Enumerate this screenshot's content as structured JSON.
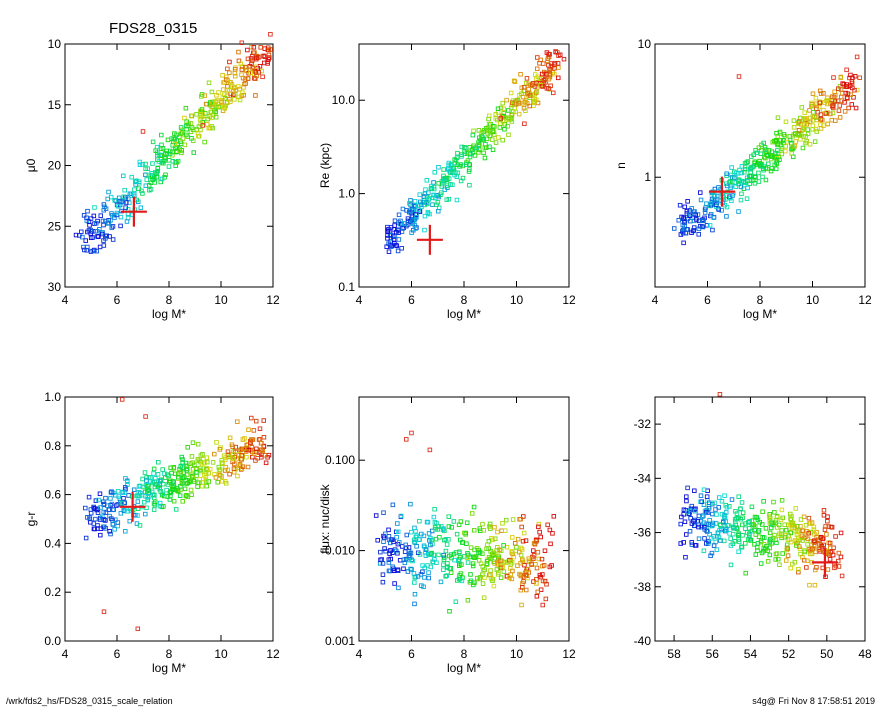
{
  "figure": {
    "title": "FDS28_0315",
    "footer_left": "/wrk/fds2_hs/FDS28_0315_scale_relation",
    "footer_right": "s4g@  Fri Nov  8 17:58:51 2019"
  },
  "colors": {
    "marker_red": "#e21a1a",
    "axis": "#000000"
  },
  "chart_data": [
    {
      "type": "scatter",
      "id": "mu0",
      "xlabel": "log M*",
      "ylabel": "μ0",
      "xlim": [
        4,
        12
      ],
      "ylim": [
        30,
        10
      ],
      "yscale": "linear",
      "xticks": [
        4,
        6,
        8,
        10,
        12
      ],
      "xticklabels": [
        "4",
        "6",
        "8",
        "10",
        "12"
      ],
      "yticks": [
        10,
        15,
        20,
        25,
        30
      ],
      "yticklabels": [
        "10",
        "15",
        "20",
        "25",
        "30"
      ],
      "x_trend": [
        4.8,
        11.8
      ],
      "y_trend": [
        26.2,
        10.5
      ],
      "scatter": 1.6,
      "target": [
        6.65,
        23.8
      ],
      "extra_points": [
        [
          11.9,
          9.2
        ],
        [
          10.8,
          9.9
        ],
        [
          11.2,
          11.0
        ],
        [
          11.6,
          12.7
        ],
        [
          9.3,
          16.7
        ],
        [
          7.0,
          17.2
        ]
      ]
    },
    {
      "type": "scatter",
      "id": "re",
      "xlabel": "log M*",
      "ylabel": "Re (kpc)",
      "xlim": [
        4,
        12
      ],
      "ylim": [
        0.1,
        40
      ],
      "yscale": "log",
      "xticks": [
        4,
        6,
        8,
        10,
        12
      ],
      "xticklabels": [
        "4",
        "6",
        "8",
        "10",
        "12"
      ],
      "yticks": [
        0.1,
        1.0,
        10.0
      ],
      "yticklabels": [
        "0.1",
        "1.0",
        "10.0"
      ],
      "x_trend": [
        5.1,
        11.7
      ],
      "y_trend": [
        0.3,
        30
      ],
      "scatter": 0.17,
      "target": [
        6.7,
        0.32
      ],
      "extra_points": [
        [
          11.6,
          30
        ],
        [
          11.0,
          14
        ],
        [
          11.4,
          12
        ],
        [
          10.3,
          5.6
        ],
        [
          9.4,
          6.4
        ]
      ]
    },
    {
      "type": "scatter",
      "id": "n",
      "xlabel": "log M*",
      "ylabel": "n",
      "xlim": [
        4,
        12
      ],
      "ylim": [
        0.15,
        10
      ],
      "yscale": "log",
      "xticks": [
        4,
        6,
        8,
        10,
        12
      ],
      "xticklabels": [
        "4",
        "6",
        "8",
        "10",
        "12"
      ],
      "yticks": [
        1,
        10
      ],
      "yticklabels": [
        "1",
        "10"
      ],
      "x_trend": [
        5.1,
        11.7
      ],
      "y_trend": [
        0.42,
        5.0
      ],
      "scatter": 0.14,
      "target": [
        6.55,
        0.78
      ],
      "extra_points": [
        [
          11.7,
          8.0
        ],
        [
          11.3,
          6.4
        ],
        [
          10.8,
          5.6
        ],
        [
          11.6,
          4.5
        ],
        [
          7.2,
          5.7
        ]
      ]
    },
    {
      "type": "scatter",
      "id": "gr",
      "xlabel": "log M*",
      "ylabel": "g-r",
      "xlim": [
        4,
        12
      ],
      "ylim": [
        0.0,
        1.0
      ],
      "yscale": "linear",
      "xticks": [
        4,
        6,
        8,
        10,
        12
      ],
      "xticklabels": [
        "4",
        "6",
        "8",
        "10",
        "12"
      ],
      "yticks": [
        0.0,
        0.2,
        0.4,
        0.6,
        0.8,
        1.0
      ],
      "yticklabels": [
        "0.0",
        "0.2",
        "0.4",
        "0.6",
        "0.8",
        "1.0"
      ],
      "x_trend": [
        5.0,
        11.7
      ],
      "y_trend": [
        0.5,
        0.82
      ],
      "scatter": 0.09,
      "target": [
        6.6,
        0.55
      ],
      "extra_points": [
        [
          6.2,
          0.99
        ],
        [
          7.1,
          0.92
        ],
        [
          6.8,
          0.05
        ],
        [
          5.5,
          0.12
        ],
        [
          11.5,
          0.87
        ]
      ]
    },
    {
      "type": "scatter",
      "id": "flux",
      "xlabel": "log M*",
      "ylabel": "flux: nuc/disk",
      "xlim": [
        4,
        12
      ],
      "ylim": [
        0.001,
        0.5
      ],
      "yscale": "log",
      "xticks": [
        4,
        6,
        8,
        10,
        12
      ],
      "xticklabels": [
        "4",
        "6",
        "8",
        "10",
        "12"
      ],
      "yticks": [
        0.001,
        0.01,
        0.1
      ],
      "yticklabels": [
        "0.001",
        "0.010",
        "0.100"
      ],
      "x_trend": [
        5.0,
        11.2
      ],
      "y_trend": [
        0.01,
        0.008
      ],
      "scatter": 0.45,
      "target": null,
      "extra_points": [
        [
          6.0,
          0.2
        ],
        [
          6.7,
          0.13
        ],
        [
          5.8,
          0.17
        ],
        [
          11.0,
          0.0025
        ]
      ]
    },
    {
      "type": "scatter",
      "id": "radec",
      "xlabel": "",
      "ylabel": "",
      "xlim": [
        59,
        48
      ],
      "ylim": [
        -40,
        -31
      ],
      "yscale": "linear",
      "xticks": [
        58,
        56,
        54,
        52,
        50,
        48
      ],
      "xticklabels": [
        "58",
        "56",
        "54",
        "52",
        "50",
        "48"
      ],
      "yticks": [
        -40,
        -38,
        -36,
        -34,
        -32
      ],
      "yticklabels": [
        "-40",
        "-38",
        "-36",
        "-34",
        "-32"
      ],
      "x_trend": [
        57.5,
        49.5
      ],
      "y_trend": [
        -35.5,
        -36.5
      ],
      "scatter": 1.1,
      "target": [
        50.1,
        -37.1
      ],
      "extra_points": [
        [
          55.6,
          -30.9
        ],
        [
          49.6,
          -37.3
        ],
        [
          49.2,
          -37.6
        ]
      ]
    }
  ]
}
